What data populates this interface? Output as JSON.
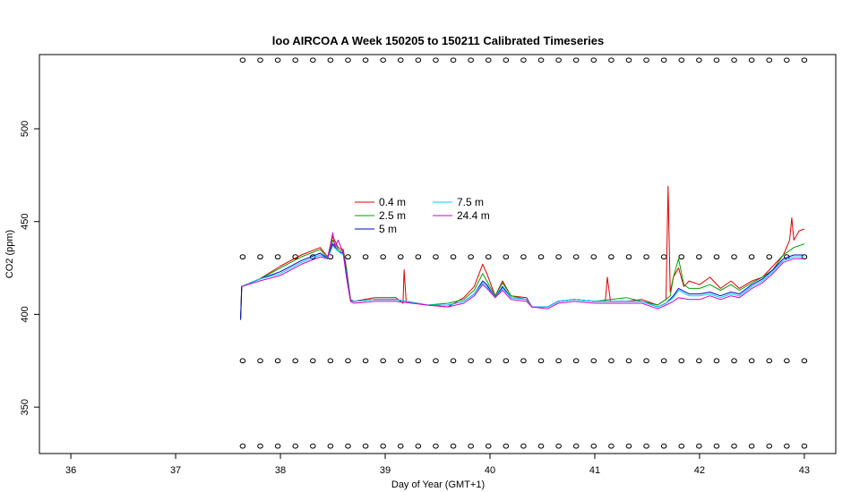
{
  "chart_data": {
    "type": "line",
    "title": "loo AIRCOA A  Week 150205 to 150211  Calibrated Timeseries",
    "xlabel": "Day of Year (GMT+1)",
    "ylabel": "CO2 (ppm)",
    "xlim": [
      35.7,
      43.3
    ],
    "ylim": [
      325,
      540
    ],
    "x_ticks": [
      36,
      37,
      38,
      39,
      40,
      41,
      42,
      43
    ],
    "y_ticks": [
      350,
      400,
      450,
      500
    ],
    "grid": false,
    "legend": {
      "position": "center-left",
      "columns": 2
    },
    "series": [
      {
        "name": "0.4 m",
        "color": "#dd0000",
        "points": [
          [
            37.62,
            398
          ],
          [
            37.63,
            415
          ],
          [
            37.8,
            419
          ],
          [
            38.0,
            426
          ],
          [
            38.2,
            432
          ],
          [
            38.38,
            436
          ],
          [
            38.45,
            431
          ],
          [
            38.5,
            442
          ],
          [
            38.55,
            436
          ],
          [
            38.6,
            435
          ],
          [
            38.63,
            425
          ],
          [
            38.67,
            408
          ],
          [
            38.7,
            407
          ],
          [
            38.9,
            409
          ],
          [
            39.1,
            409
          ],
          [
            39.17,
            406
          ],
          [
            39.18,
            424
          ],
          [
            39.2,
            407
          ],
          [
            39.4,
            405
          ],
          [
            39.6,
            404
          ],
          [
            39.75,
            409
          ],
          [
            39.85,
            415
          ],
          [
            39.93,
            427
          ],
          [
            39.97,
            422
          ],
          [
            40.05,
            410
          ],
          [
            40.12,
            418
          ],
          [
            40.2,
            410
          ],
          [
            40.35,
            409
          ],
          [
            40.4,
            404
          ],
          [
            40.55,
            404
          ],
          [
            40.65,
            407
          ],
          [
            40.8,
            408
          ],
          [
            41.0,
            407
          ],
          [
            41.1,
            407
          ],
          [
            41.12,
            420
          ],
          [
            41.15,
            407
          ],
          [
            41.3,
            407
          ],
          [
            41.45,
            408
          ],
          [
            41.6,
            405
          ],
          [
            41.68,
            408
          ],
          [
            41.7,
            469
          ],
          [
            41.72,
            412
          ],
          [
            41.75,
            420
          ],
          [
            41.8,
            425
          ],
          [
            41.85,
            415
          ],
          [
            41.9,
            418
          ],
          [
            42.0,
            416
          ],
          [
            42.1,
            420
          ],
          [
            42.2,
            414
          ],
          [
            42.3,
            418
          ],
          [
            42.38,
            414
          ],
          [
            42.5,
            418
          ],
          [
            42.6,
            420
          ],
          [
            42.7,
            426
          ],
          [
            42.8,
            432
          ],
          [
            42.86,
            440
          ],
          [
            42.88,
            452
          ],
          [
            42.9,
            440
          ],
          [
            42.95,
            445
          ],
          [
            43.0,
            446
          ]
        ]
      },
      {
        "name": "2.5 m",
        "color": "#00a000",
        "points": [
          [
            37.62,
            398
          ],
          [
            37.63,
            415
          ],
          [
            37.8,
            419
          ],
          [
            38.0,
            425
          ],
          [
            38.2,
            431
          ],
          [
            38.38,
            435
          ],
          [
            38.45,
            430
          ],
          [
            38.5,
            440
          ],
          [
            38.55,
            435
          ],
          [
            38.6,
            434
          ],
          [
            38.63,
            424
          ],
          [
            38.67,
            407
          ],
          [
            38.7,
            407
          ],
          [
            38.9,
            408
          ],
          [
            39.1,
            408
          ],
          [
            39.4,
            405
          ],
          [
            39.6,
            406
          ],
          [
            39.75,
            408
          ],
          [
            39.85,
            413
          ],
          [
            39.93,
            422
          ],
          [
            39.97,
            418
          ],
          [
            40.05,
            410
          ],
          [
            40.12,
            417
          ],
          [
            40.2,
            410
          ],
          [
            40.35,
            408
          ],
          [
            40.4,
            404
          ],
          [
            40.55,
            404
          ],
          [
            40.65,
            407
          ],
          [
            40.8,
            408
          ],
          [
            41.0,
            407
          ],
          [
            41.3,
            409
          ],
          [
            41.45,
            407
          ],
          [
            41.6,
            405
          ],
          [
            41.68,
            408
          ],
          [
            41.72,
            410
          ],
          [
            41.75,
            420
          ],
          [
            41.8,
            430
          ],
          [
            41.85,
            416
          ],
          [
            41.9,
            414
          ],
          [
            42.0,
            414
          ],
          [
            42.1,
            416
          ],
          [
            42.2,
            413
          ],
          [
            42.3,
            416
          ],
          [
            42.38,
            413
          ],
          [
            42.5,
            417
          ],
          [
            42.6,
            420
          ],
          [
            42.7,
            424
          ],
          [
            42.8,
            432
          ],
          [
            42.9,
            436
          ],
          [
            43.0,
            438
          ]
        ]
      },
      {
        "name": "5 m",
        "color": "#0000cc",
        "points": [
          [
            37.62,
            397
          ],
          [
            37.63,
            415
          ],
          [
            37.8,
            419
          ],
          [
            38.0,
            423
          ],
          [
            38.2,
            429
          ],
          [
            38.38,
            433
          ],
          [
            38.45,
            430
          ],
          [
            38.5,
            438
          ],
          [
            38.55,
            434
          ],
          [
            38.6,
            433
          ],
          [
            38.63,
            422
          ],
          [
            38.67,
            407
          ],
          [
            38.7,
            407
          ],
          [
            38.9,
            408
          ],
          [
            39.1,
            408
          ],
          [
            39.4,
            405
          ],
          [
            39.6,
            405
          ],
          [
            39.75,
            407
          ],
          [
            39.85,
            411
          ],
          [
            39.93,
            418
          ],
          [
            39.97,
            416
          ],
          [
            40.05,
            409
          ],
          [
            40.12,
            415
          ],
          [
            40.2,
            409
          ],
          [
            40.35,
            408
          ],
          [
            40.4,
            404
          ],
          [
            40.55,
            404
          ],
          [
            40.65,
            407
          ],
          [
            40.8,
            408
          ],
          [
            41.0,
            407
          ],
          [
            41.3,
            407
          ],
          [
            41.45,
            407
          ],
          [
            41.6,
            404
          ],
          [
            41.68,
            406
          ],
          [
            41.75,
            410
          ],
          [
            41.8,
            414
          ],
          [
            41.9,
            411
          ],
          [
            42.0,
            411
          ],
          [
            42.1,
            412
          ],
          [
            42.2,
            410
          ],
          [
            42.3,
            412
          ],
          [
            42.38,
            411
          ],
          [
            42.5,
            416
          ],
          [
            42.6,
            419
          ],
          [
            42.7,
            424
          ],
          [
            42.8,
            430
          ],
          [
            42.9,
            432
          ],
          [
            43.0,
            432
          ]
        ]
      },
      {
        "name": "7.5 m",
        "color": "#00ccff",
        "points": [
          [
            37.63,
            415
          ],
          [
            37.8,
            419
          ],
          [
            38.0,
            422
          ],
          [
            38.2,
            428
          ],
          [
            38.38,
            432
          ],
          [
            38.45,
            430
          ],
          [
            38.5,
            437
          ],
          [
            38.55,
            434
          ],
          [
            38.6,
            432
          ],
          [
            38.63,
            421
          ],
          [
            38.67,
            407
          ],
          [
            38.7,
            407
          ],
          [
            38.9,
            408
          ],
          [
            39.1,
            408
          ],
          [
            39.4,
            405
          ],
          [
            39.6,
            405
          ],
          [
            39.75,
            407
          ],
          [
            39.85,
            411
          ],
          [
            39.93,
            417
          ],
          [
            39.97,
            415
          ],
          [
            40.05,
            409
          ],
          [
            40.12,
            414
          ],
          [
            40.2,
            409
          ],
          [
            40.35,
            408
          ],
          [
            40.4,
            404
          ],
          [
            40.55,
            404
          ],
          [
            40.65,
            407
          ],
          [
            40.8,
            408
          ],
          [
            41.0,
            407
          ],
          [
            41.3,
            407
          ],
          [
            41.45,
            407
          ],
          [
            41.6,
            404
          ],
          [
            41.68,
            406
          ],
          [
            41.75,
            409
          ],
          [
            41.8,
            413
          ],
          [
            41.9,
            410
          ],
          [
            42.0,
            410
          ],
          [
            42.1,
            411
          ],
          [
            42.2,
            409
          ],
          [
            42.3,
            411
          ],
          [
            42.38,
            410
          ],
          [
            42.5,
            415
          ],
          [
            42.6,
            418
          ],
          [
            42.7,
            423
          ],
          [
            42.8,
            429
          ],
          [
            42.9,
            431
          ],
          [
            43.0,
            431
          ]
        ]
      },
      {
        "name": "24.4 m",
        "color": "#cc00cc",
        "points": [
          [
            37.63,
            415
          ],
          [
            37.8,
            418
          ],
          [
            38.0,
            421
          ],
          [
            38.2,
            427
          ],
          [
            38.38,
            431
          ],
          [
            38.45,
            430
          ],
          [
            38.5,
            444
          ],
          [
            38.52,
            436
          ],
          [
            38.55,
            440
          ],
          [
            38.6,
            433
          ],
          [
            38.63,
            420
          ],
          [
            38.67,
            407
          ],
          [
            38.7,
            406
          ],
          [
            38.9,
            407
          ],
          [
            39.1,
            407
          ],
          [
            39.4,
            405
          ],
          [
            39.6,
            404
          ],
          [
            39.75,
            406
          ],
          [
            39.85,
            410
          ],
          [
            39.93,
            416
          ],
          [
            39.97,
            414
          ],
          [
            40.05,
            409
          ],
          [
            40.12,
            413
          ],
          [
            40.2,
            408
          ],
          [
            40.35,
            407
          ],
          [
            40.4,
            404
          ],
          [
            40.55,
            403
          ],
          [
            40.65,
            406
          ],
          [
            40.8,
            407
          ],
          [
            41.0,
            406
          ],
          [
            41.3,
            406
          ],
          [
            41.45,
            406
          ],
          [
            41.6,
            403
          ],
          [
            41.68,
            405
          ],
          [
            41.75,
            407
          ],
          [
            41.8,
            409
          ],
          [
            41.9,
            408
          ],
          [
            42.0,
            408
          ],
          [
            42.1,
            410
          ],
          [
            42.2,
            408
          ],
          [
            42.3,
            410
          ],
          [
            42.38,
            409
          ],
          [
            42.5,
            414
          ],
          [
            42.6,
            417
          ],
          [
            42.7,
            422
          ],
          [
            42.8,
            428
          ],
          [
            42.9,
            430
          ],
          [
            43.0,
            430
          ]
        ]
      }
    ],
    "marker_rows": [
      {
        "y": 537,
        "x_start": 37.64,
        "x_end": 43.0,
        "count": 33
      },
      {
        "y": 431,
        "x_start": 37.64,
        "x_end": 43.0,
        "count": 33
      },
      {
        "y": 375,
        "x_start": 37.64,
        "x_end": 43.0,
        "count": 33
      },
      {
        "y": 329,
        "x_start": 37.64,
        "x_end": 43.0,
        "count": 33
      }
    ]
  }
}
